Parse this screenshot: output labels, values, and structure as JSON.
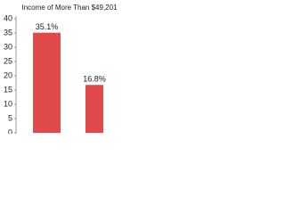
{
  "chart_data": {
    "type": "bar",
    "title": "Income of More Than $49,201",
    "values": [
      35.1,
      16.8
    ],
    "value_labels": [
      "35.1%",
      "16.8%"
    ],
    "color": "#e04a4a",
    "ylim": [
      0,
      40
    ],
    "yticks": [
      0,
      5,
      10,
      15,
      20,
      25,
      30,
      35,
      40
    ],
    "grid": false
  }
}
